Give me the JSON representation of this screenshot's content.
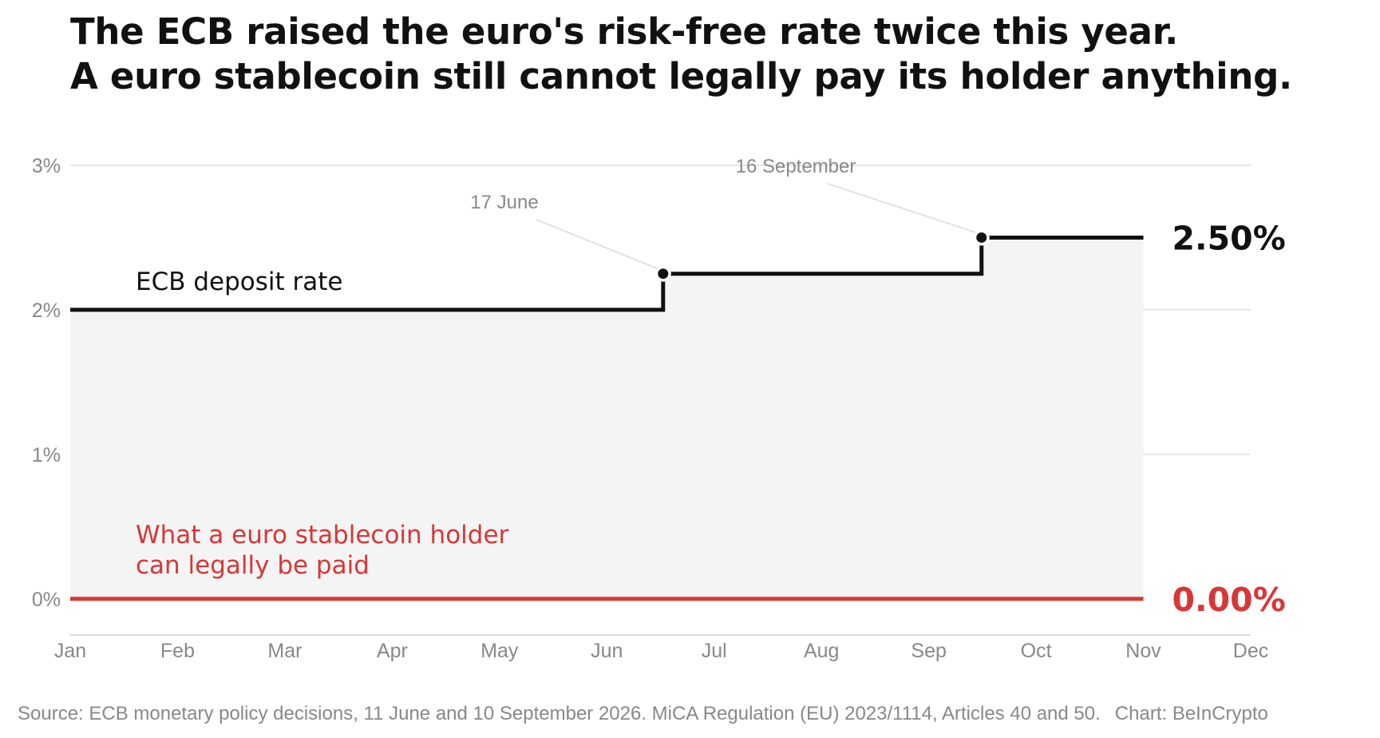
{
  "title_lines": [
    "The ECB raised the euro's risk-free rate twice this year.",
    "A euro stablecoin still cannot legally pay its holder anything."
  ],
  "source": "Source: ECB monetary policy decisions, 11 June and 10 September 2026. MiCA Regulation (EU) 2023/1114, Articles 40 and 50.",
  "credit": "Chart: BeInCrypto",
  "colors": {
    "ecb_line": "#111111",
    "stablecoin_line": "#d93636",
    "fill": "#f4f4f4",
    "grid": "#e6e6e6",
    "axis_text": "#888888"
  },
  "chart_data": {
    "type": "line",
    "title": "The ECB raised the euro's risk-free rate twice this year. A euro stablecoin still cannot legally pay its holder anything.",
    "x_ticks": [
      "Jan",
      "Feb",
      "Mar",
      "Apr",
      "May",
      "Jun",
      "Jul",
      "Aug",
      "Sep",
      "Oct",
      "Nov",
      "Dec"
    ],
    "x_range": [
      "1 Jan",
      "1 Dec"
    ],
    "y_ticks": [
      0,
      1,
      2,
      3
    ],
    "y_tick_labels": [
      "0%",
      "1%",
      "2%",
      "3%"
    ],
    "ylim": [
      -0.25,
      3
    ],
    "grid": true,
    "series": [
      {
        "name": "ECB deposit rate",
        "step": true,
        "points": [
          {
            "x": "1 Jan",
            "y": 2.0
          },
          {
            "x": "17 June",
            "y": 2.25
          },
          {
            "x": "16 September",
            "y": 2.5
          },
          {
            "x": "1 Nov",
            "y": 2.5
          }
        ],
        "end_label": "2.50%"
      },
      {
        "name": "What a euro stablecoin holder can legally be paid",
        "name_lines": [
          "What a euro stablecoin holder",
          "can legally be paid"
        ],
        "step": false,
        "points": [
          {
            "x": "1 Jan",
            "y": 0.0
          },
          {
            "x": "1 Nov",
            "y": 0.0
          }
        ],
        "end_label": "0.00%"
      }
    ],
    "annotations": [
      {
        "label": "17 June",
        "x": "17 June",
        "y": 2.25
      },
      {
        "label": "16 September",
        "x": "16 September",
        "y": 2.5
      }
    ]
  }
}
